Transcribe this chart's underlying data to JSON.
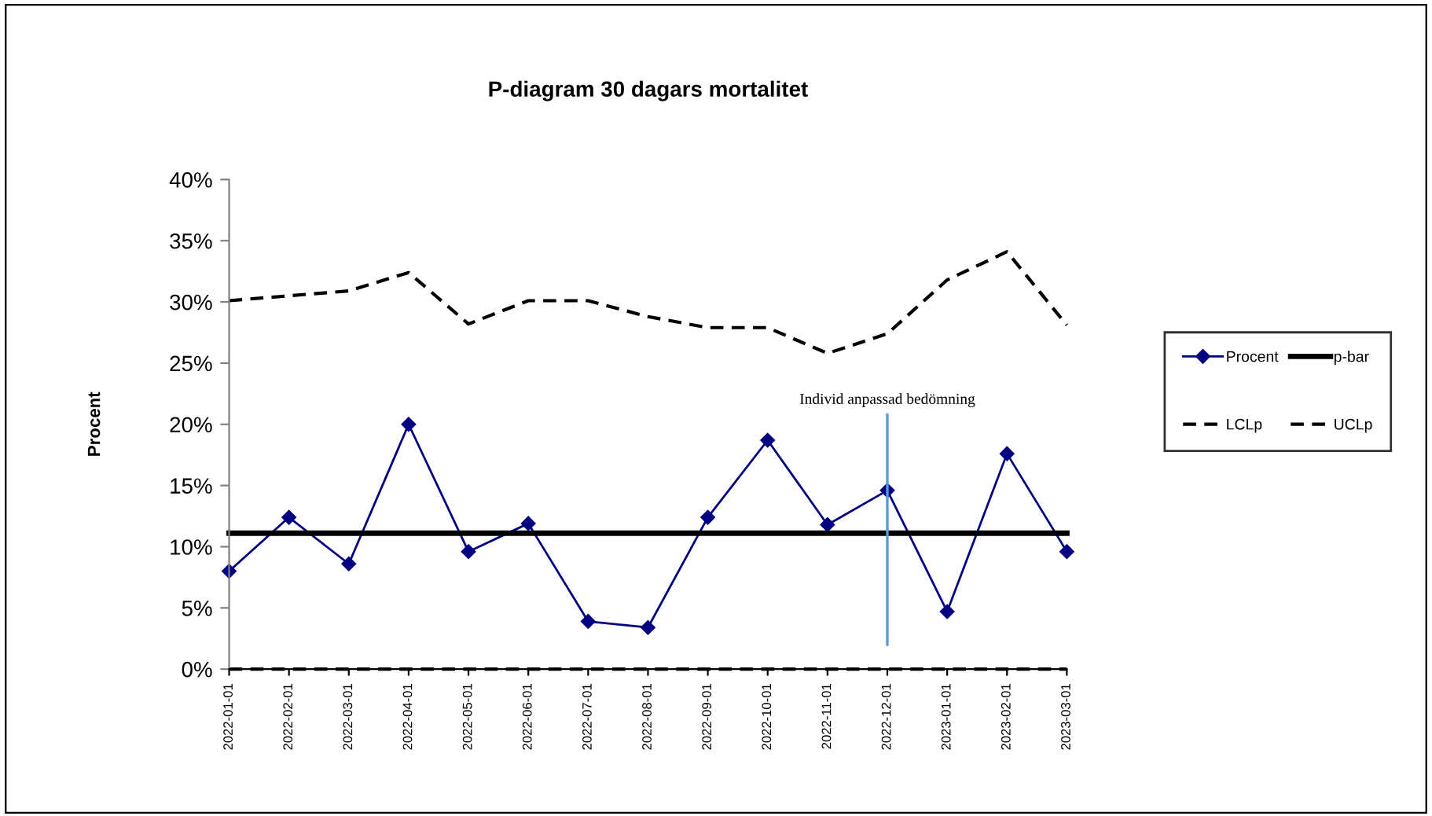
{
  "chart_data": {
    "type": "line",
    "title": "P-diagram 30 dagars mortalitet",
    "ylabel": "Procent",
    "categories": [
      "2022-01-01",
      "2022-02-01",
      "2022-03-01",
      "2022-04-01",
      "2022-05-01",
      "2022-06-01",
      "2022-07-01",
      "2022-08-01",
      "2022-09-01",
      "2022-10-01",
      "2022-11-01",
      "2022-12-01",
      "2023-01-01",
      "2023-02-01",
      "2023-03-01"
    ],
    "series": [
      {
        "name": "Procent",
        "color": "#000080",
        "marker": "diamond",
        "line_style": "solid",
        "values": [
          8.0,
          12.4,
          8.6,
          20.0,
          9.6,
          11.9,
          3.9,
          3.4,
          12.4,
          18.7,
          11.8,
          14.6,
          4.7,
          17.6,
          9.6
        ]
      },
      {
        "name": "p-bar",
        "color": "#000000",
        "marker": "none",
        "line_style": "solid",
        "values": [
          11.1,
          11.1,
          11.1,
          11.1,
          11.1,
          11.1,
          11.1,
          11.1,
          11.1,
          11.1,
          11.1,
          11.1,
          11.1,
          11.1,
          11.1
        ]
      },
      {
        "name": "LCLp",
        "color": "#000000",
        "marker": "none",
        "line_style": "dashed",
        "values": [
          0,
          0,
          0,
          0,
          0,
          0,
          0,
          0,
          0,
          0,
          0,
          0,
          0,
          0,
          0
        ]
      },
      {
        "name": "UCLp",
        "color": "#000000",
        "marker": "none",
        "line_style": "dashed",
        "values": [
          30.1,
          30.5,
          30.9,
          32.4,
          28.2,
          30.1,
          30.1,
          28.8,
          27.9,
          27.9,
          25.8,
          27.4,
          31.8,
          34.1,
          28.1
        ]
      }
    ],
    "ref_lines": [
      {
        "axis": "x",
        "value": "2022-12-01",
        "label": "Individ anpassad bedömning",
        "color": "#5b9bd5"
      }
    ],
    "ylim": [
      0,
      40
    ],
    "yticks": [
      {
        "value": 0,
        "label": "0%"
      },
      {
        "value": 5,
        "label": "5%"
      },
      {
        "value": 10,
        "label": "10%"
      },
      {
        "value": 15,
        "label": "15%"
      },
      {
        "value": 20,
        "label": "20%"
      },
      {
        "value": 25,
        "label": "25%"
      },
      {
        "value": 30,
        "label": "30%"
      },
      {
        "value": 35,
        "label": "35%"
      },
      {
        "value": 40,
        "label": "40%"
      }
    ],
    "grid": false,
    "legend": "right"
  }
}
